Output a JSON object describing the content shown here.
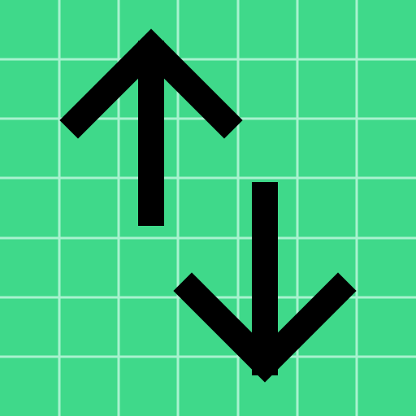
{
  "icon": {
    "name": "swap-vertical-icon",
    "background_color": "#3fd98a",
    "grid_color": "#a8f2cf",
    "arrow_color": "#000000"
  }
}
